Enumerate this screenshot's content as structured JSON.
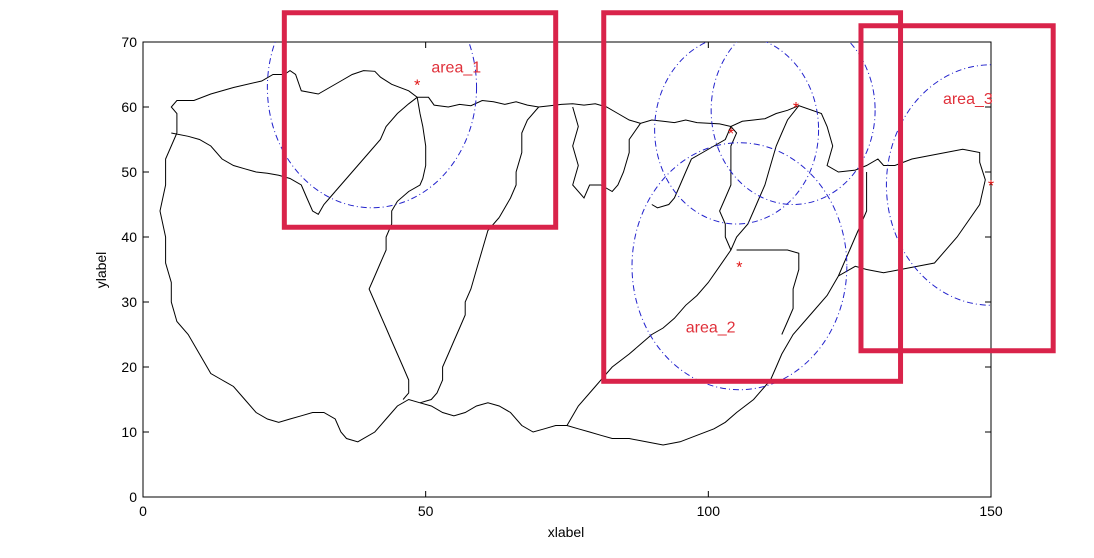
{
  "chart_data": {
    "type": "map",
    "xlabel": "xlabel",
    "ylabel": "ylabel",
    "xlim": [
      0,
      150
    ],
    "ylim": [
      0,
      70
    ],
    "xticks": [
      0,
      50,
      100,
      150
    ],
    "yticks": [
      0,
      10,
      20,
      30,
      40,
      50,
      60,
      70
    ],
    "grid": false,
    "colors": {
      "boundary": "#000000",
      "circle": "#2222cc",
      "marker": "#e01010",
      "box": "#d9234a",
      "annotation": "#e0303a"
    },
    "outer_boundary": [
      [
        6,
        56
      ],
      [
        6,
        59
      ],
      [
        5,
        60
      ],
      [
        6,
        61
      ],
      [
        9,
        61
      ],
      [
        12,
        62
      ],
      [
        16,
        63
      ],
      [
        21,
        64
      ],
      [
        23,
        65
      ],
      [
        25,
        65
      ],
      [
        26,
        65.6
      ],
      [
        27,
        65
      ],
      [
        28,
        62.5
      ],
      [
        31,
        62
      ],
      [
        35,
        64
      ],
      [
        37,
        65
      ],
      [
        39,
        65.6
      ],
      [
        41,
        65.5
      ],
      [
        42,
        64.6
      ],
      [
        44,
        63.5
      ],
      [
        47,
        62.5
      ],
      [
        48.5,
        61.5
      ],
      [
        50.5,
        61.5
      ],
      [
        51.5,
        60.3
      ],
      [
        54,
        60
      ],
      [
        56,
        60.4
      ],
      [
        58,
        60.2
      ],
      [
        60,
        61
      ],
      [
        62,
        60.8
      ],
      [
        64,
        60.4
      ],
      [
        66,
        60.8
      ],
      [
        68,
        60.3
      ],
      [
        70,
        60
      ],
      [
        72,
        60.2
      ],
      [
        74,
        60.4
      ],
      [
        76,
        60.5
      ],
      [
        78,
        60.3
      ],
      [
        80,
        60.5
      ],
      [
        82,
        60
      ],
      [
        84,
        59
      ],
      [
        86,
        58
      ],
      [
        88,
        57.5
      ],
      [
        90,
        58
      ],
      [
        92,
        57.8
      ],
      [
        94,
        57.6
      ],
      [
        96,
        58
      ],
      [
        98,
        57.6
      ],
      [
        100,
        57.5
      ],
      [
        102,
        57.4
      ],
      [
        104,
        57
      ],
      [
        106,
        57.8
      ],
      [
        108,
        58
      ],
      [
        110,
        58.2
      ],
      [
        112,
        59
      ],
      [
        114,
        59.5
      ],
      [
        116,
        60.2
      ],
      [
        120,
        59
      ],
      [
        121,
        57
      ],
      [
        122,
        54
      ],
      [
        121,
        51
      ],
      [
        123,
        50
      ],
      [
        126,
        50.3
      ],
      [
        128,
        51
      ],
      [
        130,
        52
      ],
      [
        131,
        51
      ],
      [
        133,
        51
      ],
      [
        136,
        52
      ],
      [
        139,
        52.5
      ],
      [
        142,
        53
      ],
      [
        145,
        53.5
      ],
      [
        148,
        53
      ],
      [
        148,
        51.5
      ],
      [
        149,
        48.8
      ],
      [
        148,
        45
      ],
      [
        144,
        40
      ],
      [
        140,
        36
      ],
      [
        137,
        35.5
      ],
      [
        134,
        35
      ],
      [
        131,
        34.5
      ],
      [
        128,
        35
      ],
      [
        126,
        35.5
      ],
      [
        123,
        34
      ],
      [
        121,
        31
      ],
      [
        118,
        28
      ],
      [
        115,
        25
      ],
      [
        113,
        22
      ],
      [
        112,
        20
      ],
      [
        111,
        18
      ],
      [
        108,
        15
      ],
      [
        105,
        13
      ],
      [
        103,
        11.5
      ],
      [
        101,
        10.5
      ],
      [
        98,
        9.5
      ],
      [
        95,
        8.5
      ],
      [
        92,
        8
      ],
      [
        89,
        8.5
      ],
      [
        86,
        9
      ],
      [
        83,
        9
      ],
      [
        81,
        9.5
      ],
      [
        79,
        10
      ],
      [
        77,
        10.5
      ],
      [
        75,
        11
      ],
      [
        73,
        11
      ],
      [
        71,
        10.5
      ],
      [
        69,
        10
      ],
      [
        67,
        11
      ],
      [
        65,
        13
      ],
      [
        63,
        14
      ],
      [
        61,
        14.5
      ],
      [
        59,
        14
      ],
      [
        57,
        13
      ],
      [
        55,
        12.5
      ],
      [
        53,
        13
      ],
      [
        51,
        14
      ],
      [
        49,
        14.5
      ],
      [
        47,
        15
      ],
      [
        45,
        14
      ],
      [
        43,
        12
      ],
      [
        41,
        10
      ],
      [
        38,
        8.5
      ],
      [
        36,
        9
      ],
      [
        35,
        10
      ],
      [
        34,
        12
      ],
      [
        32,
        13
      ],
      [
        30,
        13
      ],
      [
        28,
        12.5
      ],
      [
        26,
        12
      ],
      [
        24,
        11.5
      ],
      [
        22,
        12
      ],
      [
        20,
        13
      ],
      [
        18,
        15
      ],
      [
        16,
        17
      ],
      [
        14,
        18
      ],
      [
        12,
        19
      ],
      [
        10,
        22
      ],
      [
        8,
        25
      ],
      [
        6,
        27
      ],
      [
        5,
        30
      ],
      [
        5,
        33
      ],
      [
        4,
        36
      ],
      [
        4,
        40
      ],
      [
        3,
        44
      ],
      [
        4,
        48
      ],
      [
        4,
        52
      ],
      [
        6,
        56
      ]
    ],
    "boundaries": [
      [
        [
          5,
          56
        ],
        [
          8,
          55.5
        ],
        [
          10,
          55
        ],
        [
          12,
          54
        ],
        [
          14,
          52
        ],
        [
          16,
          51
        ],
        [
          18,
          50.5
        ],
        [
          20,
          50
        ],
        [
          22,
          49.8
        ],
        [
          24,
          49.5
        ],
        [
          26,
          49
        ],
        [
          28,
          48
        ],
        [
          29,
          46
        ],
        [
          30,
          44
        ],
        [
          31,
          43.5
        ],
        [
          32,
          45
        ],
        [
          33,
          46
        ],
        [
          34,
          47
        ]
      ],
      [
        [
          34,
          47
        ],
        [
          36,
          49
        ],
        [
          38,
          51
        ],
        [
          40,
          53
        ],
        [
          42,
          55
        ],
        [
          43,
          57
        ],
        [
          45,
          59
        ],
        [
          47,
          60.5
        ],
        [
          48.5,
          61.5
        ]
      ],
      [
        [
          48.5,
          61.5
        ],
        [
          49,
          59
        ],
        [
          49.5,
          57
        ],
        [
          50,
          54
        ],
        [
          50,
          51
        ],
        [
          49.5,
          49
        ],
        [
          49,
          48
        ],
        [
          47,
          47
        ],
        [
          45,
          45.5
        ],
        [
          44,
          44
        ],
        [
          44,
          42
        ],
        [
          43,
          40
        ],
        [
          43,
          38
        ],
        [
          42,
          36
        ],
        [
          41,
          34
        ],
        [
          40,
          32
        ],
        [
          41,
          30
        ],
        [
          42,
          28
        ],
        [
          43,
          26
        ],
        [
          44,
          24
        ],
        [
          45,
          22
        ],
        [
          46,
          20
        ],
        [
          47,
          18
        ],
        [
          47,
          16
        ],
        [
          46,
          15
        ]
      ],
      [
        [
          63,
          43
        ],
        [
          65,
          46
        ],
        [
          66,
          48
        ],
        [
          66,
          50
        ],
        [
          67,
          53
        ],
        [
          67,
          56
        ],
        [
          68,
          58
        ],
        [
          70,
          60
        ]
      ],
      [
        [
          63,
          43
        ],
        [
          61,
          41
        ],
        [
          60,
          38
        ],
        [
          59,
          35
        ],
        [
          58,
          32
        ],
        [
          57,
          30
        ],
        [
          57,
          28
        ],
        [
          56,
          26
        ],
        [
          55,
          24
        ],
        [
          54,
          22
        ],
        [
          53,
          20
        ],
        [
          53,
          18
        ],
        [
          52,
          16
        ],
        [
          51,
          15
        ],
        [
          49,
          14.5
        ]
      ],
      [
        [
          75,
          11
        ],
        [
          77,
          14
        ],
        [
          80,
          17
        ],
        [
          83,
          20
        ],
        [
          86,
          22
        ],
        [
          88,
          23.5
        ],
        [
          90,
          25
        ],
        [
          92,
          26
        ],
        [
          94,
          27.5
        ],
        [
          96,
          29.5
        ],
        [
          98,
          31
        ],
        [
          100,
          33
        ],
        [
          102,
          35.5
        ],
        [
          104,
          38
        ],
        [
          105,
          40
        ],
        [
          107,
          42
        ],
        [
          108,
          44
        ],
        [
          109,
          46
        ],
        [
          110,
          48
        ],
        [
          111,
          51
        ],
        [
          112,
          54
        ],
        [
          113,
          56
        ],
        [
          114,
          58
        ],
        [
          116,
          60.2
        ]
      ],
      [
        [
          104,
          57
        ],
        [
          103,
          55
        ],
        [
          101,
          54
        ],
        [
          99,
          53
        ],
        [
          97,
          52
        ],
        [
          96,
          50
        ],
        [
          95,
          48
        ],
        [
          94,
          46
        ],
        [
          93,
          45
        ],
        [
          91,
          44.5
        ],
        [
          90,
          45
        ]
      ],
      [
        [
          88,
          57.5
        ],
        [
          86,
          55
        ],
        [
          86,
          53
        ],
        [
          85,
          50
        ],
        [
          84,
          48
        ],
        [
          83,
          47
        ],
        [
          81,
          48
        ],
        [
          79,
          48
        ],
        [
          78,
          46
        ],
        [
          76,
          48
        ],
        [
          77,
          51
        ],
        [
          76,
          54
        ],
        [
          77,
          57
        ],
        [
          76,
          60
        ]
      ],
      [
        [
          105,
          38
        ],
        [
          108,
          38
        ],
        [
          111,
          38
        ],
        [
          114,
          38
        ],
        [
          116,
          37.5
        ],
        [
          116,
          35
        ],
        [
          115,
          32
        ],
        [
          115,
          29
        ],
        [
          114,
          27
        ],
        [
          113,
          25
        ]
      ],
      [
        [
          104,
          38
        ],
        [
          103,
          40
        ],
        [
          103,
          42
        ],
        [
          102,
          44
        ],
        [
          103,
          46
        ],
        [
          104,
          48
        ],
        [
          104,
          50
        ],
        [
          104,
          52
        ],
        [
          104,
          54
        ],
        [
          105,
          56
        ],
        [
          104,
          57
        ]
      ],
      [
        [
          123,
          34
        ],
        [
          124,
          36
        ],
        [
          125,
          38
        ],
        [
          126,
          40
        ],
        [
          127,
          42
        ],
        [
          128,
          44
        ],
        [
          128,
          46
        ],
        [
          128,
          48
        ],
        [
          128,
          50
        ]
      ]
    ],
    "circles": [
      {
        "center": [
          40.5,
          63
        ],
        "radius": 18.5
      },
      {
        "center": [
          105,
          56.5
        ],
        "radius": 14.5
      },
      {
        "center": [
          115,
          59.5
        ],
        "radius": 14.5
      },
      {
        "center": [
          105.5,
          35.5
        ],
        "radius": 19
      },
      {
        "center": [
          150,
          48
        ],
        "radius": 18.5
      }
    ],
    "markers": [
      {
        "x": 48.5,
        "y": 63.5
      },
      {
        "x": 104,
        "y": 56
      },
      {
        "x": 115.5,
        "y": 60
      },
      {
        "x": 105.5,
        "y": 35.5
      },
      {
        "x": 150,
        "y": 48
      }
    ],
    "annotations": [
      {
        "text": "area_1",
        "x": 51,
        "y": 65.3
      },
      {
        "text": "area_2",
        "x": 96,
        "y": 25.3
      },
      {
        "text": "area_3",
        "x": 141.5,
        "y": 60.5
      }
    ],
    "highlight_boxes": [
      {
        "label_ref": "area_1",
        "x0": 25,
        "x1": 73,
        "y0": 41.5,
        "y1": 74.5
      },
      {
        "label_ref": "area_2",
        "x0": 81.5,
        "x1": 134,
        "y0": 17.8,
        "y1": 74.5
      },
      {
        "label_ref": "area_3",
        "x0": 127,
        "x1": 161,
        "y0": 22.5,
        "y1": 72.5
      }
    ]
  }
}
